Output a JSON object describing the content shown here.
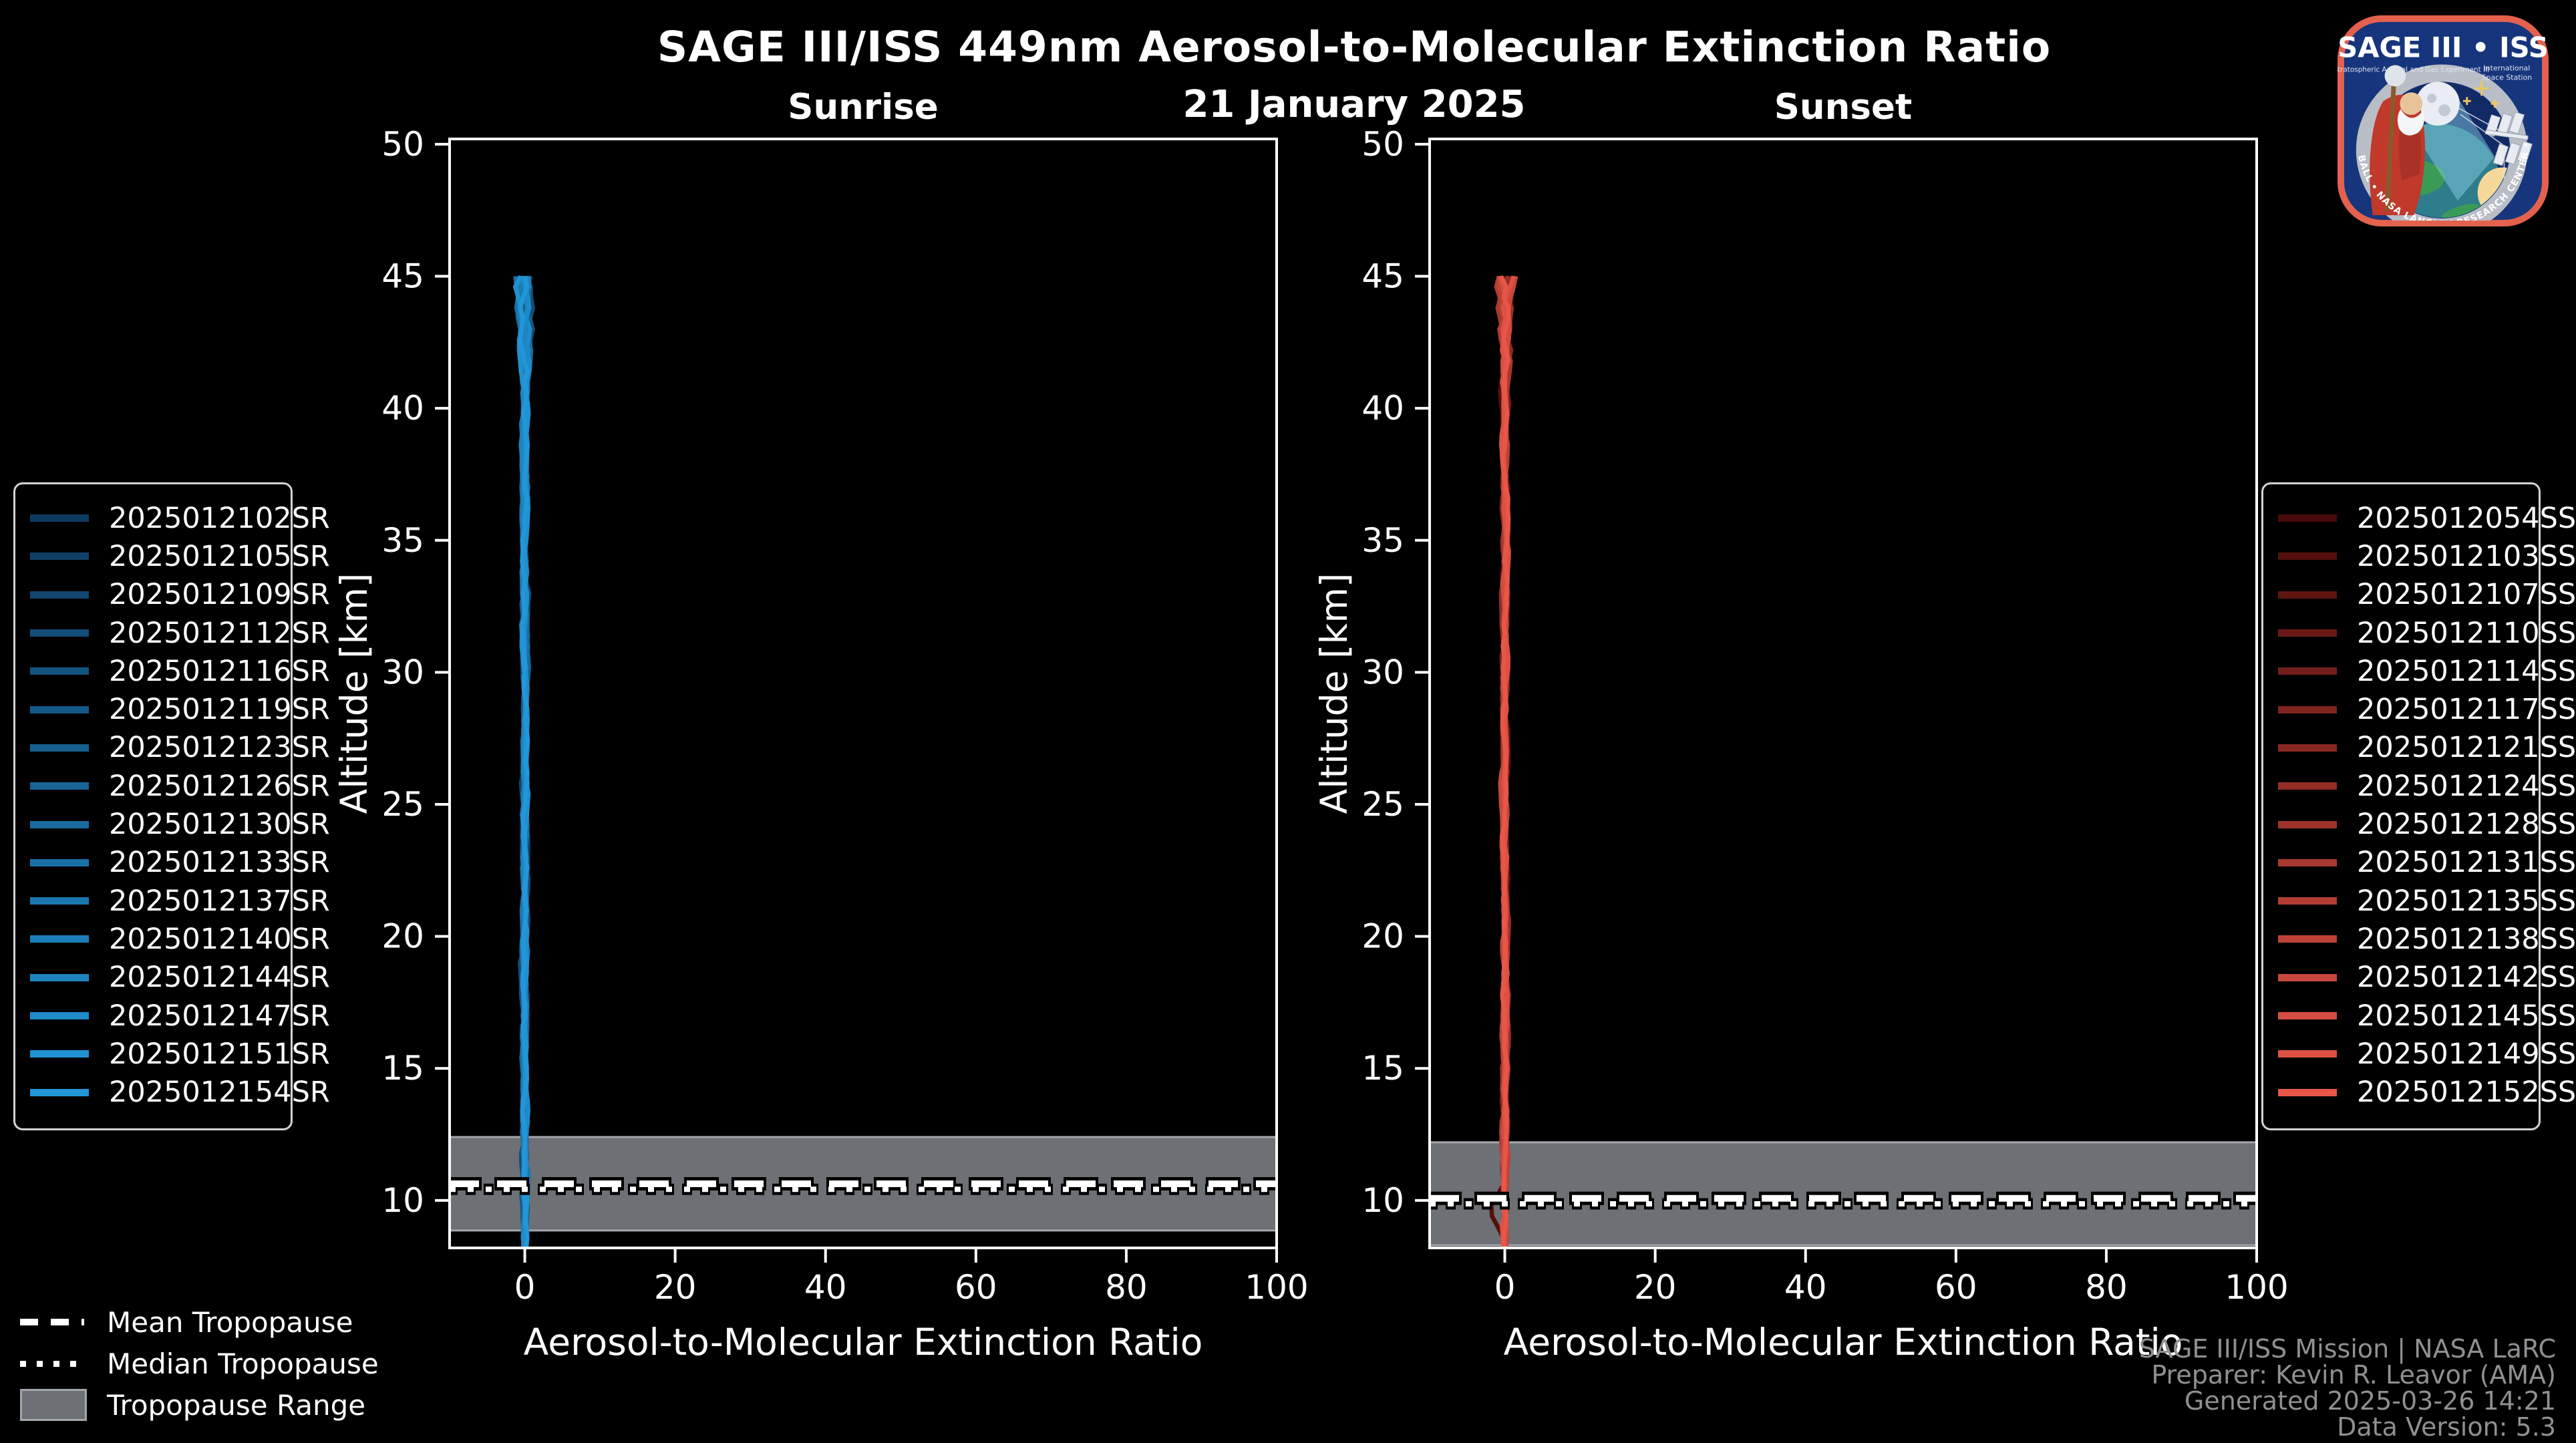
{
  "title": "SAGE III/ISS 449nm Aerosol-to-Molecular Extinction Ratio",
  "subtitle": "21 January 2025",
  "chart_data": [
    {
      "type": "line",
      "title": "Sunrise",
      "xlabel": "Aerosol-to-Molecular Extinction Ratio",
      "ylabel": "Altitude [km]",
      "xlim": [
        -10,
        100
      ],
      "ylim": [
        8.2,
        50.2
      ],
      "xticks": [
        0,
        20,
        40,
        60,
        80,
        100
      ],
      "yticks": [
        10,
        15,
        20,
        25,
        30,
        35,
        40,
        45,
        50
      ],
      "grid": false,
      "legend_position": "outside-left",
      "seed": 7,
      "profile_shape": {
        "alt_min": 8.2,
        "alt_max": 45.0,
        "x_mean": 0.0,
        "jitter_sd": 0.2,
        "jitter_grows_above_km": 40
      },
      "tropopause": {
        "mean": 10.63,
        "median": 10.42,
        "range": [
          8.86,
          12.4
        ]
      },
      "series": [
        {
          "name": "2025012102SR",
          "color": "#0F3A5F",
          "x_mean": 0
        },
        {
          "name": "2025012105SR",
          "color": "#104067",
          "x_mean": 0
        },
        {
          "name": "2025012109SR",
          "color": "#11466F",
          "x_mean": 0
        },
        {
          "name": "2025012112SR",
          "color": "#134C77",
          "x_mean": 0
        },
        {
          "name": "2025012116SR",
          "color": "#14537F",
          "x_mean": 0
        },
        {
          "name": "2025012119SR",
          "color": "#155987",
          "x_mean": 0
        },
        {
          "name": "2025012123SR",
          "color": "#165F8F",
          "x_mean": 0
        },
        {
          "name": "2025012126SR",
          "color": "#176597",
          "x_mean": 0
        },
        {
          "name": "2025012130SR",
          "color": "#196BA0",
          "x_mean": 0
        },
        {
          "name": "2025012133SR",
          "color": "#1A71A8",
          "x_mean": 0
        },
        {
          "name": "2025012137SR",
          "color": "#1B77B0",
          "x_mean": 0
        },
        {
          "name": "2025012140SR",
          "color": "#1C7DB8",
          "x_mean": 0
        },
        {
          "name": "2025012144SR",
          "color": "#1E84C0",
          "x_mean": 0
        },
        {
          "name": "2025012147SR",
          "color": "#1F8AC8",
          "x_mean": 0
        },
        {
          "name": "2025012151SR",
          "color": "#2090D0",
          "x_mean": 0
        },
        {
          "name": "2025012154SR",
          "color": "#2196D8",
          "x_mean": 0
        }
      ]
    },
    {
      "type": "line",
      "title": "Sunset",
      "xlabel": "Aerosol-to-Molecular Extinction Ratio",
      "ylabel": "Altitude [km]",
      "xlim": [
        -10,
        100
      ],
      "ylim": [
        8.2,
        50.2
      ],
      "xticks": [
        0,
        20,
        40,
        60,
        80,
        100
      ],
      "yticks": [
        10,
        15,
        20,
        25,
        30,
        35,
        40,
        45,
        50
      ],
      "grid": false,
      "legend_position": "outside-right",
      "seed": 13,
      "profile_shape": {
        "alt_min": 8.2,
        "alt_max": 45.0,
        "x_mean": 0.0,
        "jitter_sd": 0.2,
        "jitter_grows_above_km": 40
      },
      "bump": {
        "series": [
          1
        ],
        "center": 9.6,
        "width": 0.55,
        "amount": -2.3
      },
      "tropopause": {
        "mean": 10.08,
        "median": 9.87,
        "range": [
          8.3,
          12.2
        ]
      },
      "series": [
        {
          "name": "2025012054SS",
          "color": "#4A0A0A",
          "x_mean": 0
        },
        {
          "name": "2025012103SS",
          "color": "#550F0E",
          "x_mean": 0
        },
        {
          "name": "2025012107SS",
          "color": "#5F1412",
          "x_mean": 0
        },
        {
          "name": "2025012110SS",
          "color": "#6A1916",
          "x_mean": 0
        },
        {
          "name": "2025012114SS",
          "color": "#741E1B",
          "x_mean": 0
        },
        {
          "name": "2025012117SS",
          "color": "#7F231F",
          "x_mean": 0
        },
        {
          "name": "2025012121SS",
          "color": "#892823",
          "x_mean": 0
        },
        {
          "name": "2025012124SS",
          "color": "#942E27",
          "x_mean": 0
        },
        {
          "name": "2025012128SS",
          "color": "#9E332B",
          "x_mean": 0
        },
        {
          "name": "2025012131SS",
          "color": "#A9382F",
          "x_mean": 0
        },
        {
          "name": "2025012135SS",
          "color": "#B33D33",
          "x_mean": 0
        },
        {
          "name": "2025012138SS",
          "color": "#BE4237",
          "x_mean": 0
        },
        {
          "name": "2025012142SS",
          "color": "#C8473C",
          "x_mean": 0
        },
        {
          "name": "2025012145SS",
          "color": "#D34C40",
          "x_mean": 0
        },
        {
          "name": "2025012149SS",
          "color": "#DD5144",
          "x_mean": 0
        },
        {
          "name": "2025012152SS",
          "color": "#E85648",
          "x_mean": 0
        }
      ]
    }
  ],
  "tropopause_legend": {
    "mean_label": "Mean Tropopause",
    "median_label": "Median Tropopause",
    "range_label": "Tropopause Range",
    "range_color": "#6d7075"
  },
  "footer": {
    "line1": "SAGE III/ISS Mission | NASA LaRC",
    "line2": "Preparer: Kevin R. Leavor (AMA)",
    "line3": "Generated 2025-03-26 14:21",
    "line4": "Data Version: 5.3"
  },
  "logo": {
    "title": "SAGE III • ISS",
    "subtitle_left": "Stratospheric Aerosol and Gas Experiment III",
    "subtitle_right_1": "International",
    "subtitle_right_2": "Space Station",
    "border_text": "BALL • NASA LANGLEY RESEARCH CENTER • TAS-I • ESA"
  },
  "colors": {
    "background": "#000000",
    "axis": "#ffffff",
    "tropopause_band": "#6d7075",
    "tropopause_band_edge": "#a3a6aa",
    "footer_text": "#8f9093",
    "legend_border": "#d4d4d4"
  }
}
